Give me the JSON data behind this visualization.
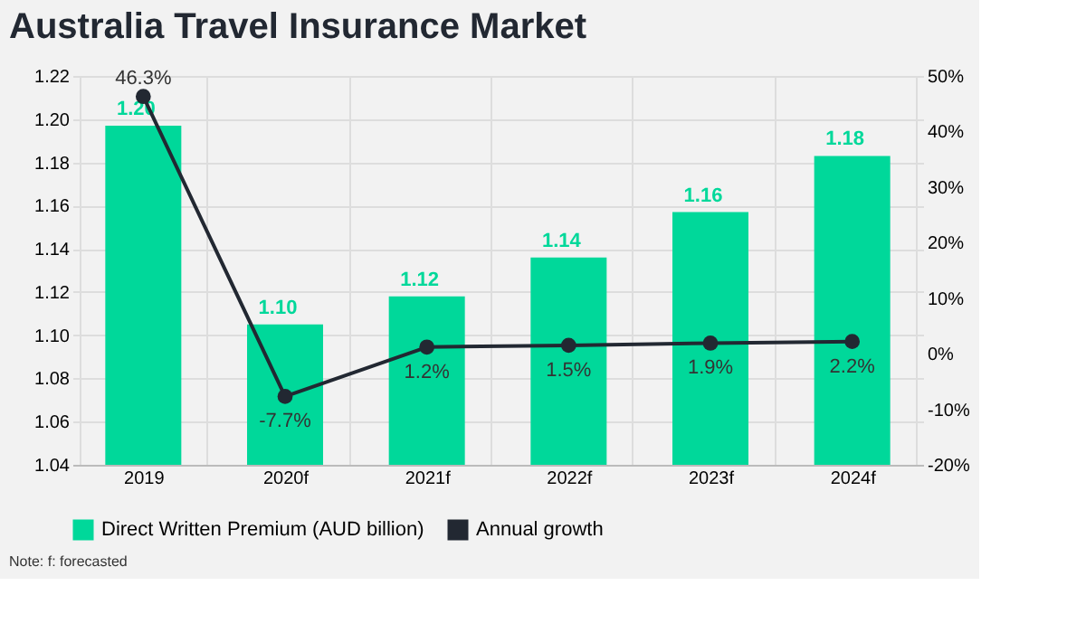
{
  "chart_data": {
    "type": "bar",
    "title": "Australia Travel Insurance Market",
    "categories": [
      "2019",
      "2020f",
      "2021f",
      "2022f",
      "2023f",
      "2024f"
    ],
    "series": [
      {
        "name": "Direct Written Premium (AUD billion)",
        "color": "#00d89a",
        "values": [
          1.197,
          1.105,
          1.118,
          1.136,
          1.157,
          1.183
        ],
        "value_labels": [
          "1.20",
          "1.10",
          "1.12",
          "1.14",
          "1.16",
          "1.18"
        ]
      },
      {
        "name": "Annual growth",
        "type": "line",
        "axis": "y2",
        "color": "#222832",
        "marker": "circle",
        "values": [
          46.3,
          -7.7,
          1.2,
          1.5,
          1.9,
          2.2
        ],
        "value_labels": [
          "46.3%",
          "-7.7%",
          "1.2%",
          "1.5%",
          "1.9%",
          "2.2%"
        ]
      }
    ],
    "ylim": [
      1.04,
      1.22
    ],
    "yticks": [
      1.04,
      1.06,
      1.08,
      {
        "value": 1.1,
        "label": "1.10"
      },
      1.12,
      1.14,
      1.16,
      1.18,
      {
        "value": 1.2,
        "label": "1.20"
      },
      1.22
    ],
    "y2lim": [
      -20,
      50
    ],
    "y2ticks": [
      {
        "value": -20,
        "label": "-20%"
      },
      {
        "value": -10,
        "label": "-10%"
      },
      {
        "value": 0,
        "label": "0%"
      },
      {
        "value": 10,
        "label": "10%"
      },
      {
        "value": 20,
        "label": "20%"
      },
      {
        "value": 30,
        "label": "30%"
      },
      {
        "value": 40,
        "label": "40%"
      },
      {
        "value": 50,
        "label": "50%"
      }
    ],
    "grid": true,
    "legend": "bottom",
    "annotations": [
      "Note: f: forecasted"
    ]
  }
}
